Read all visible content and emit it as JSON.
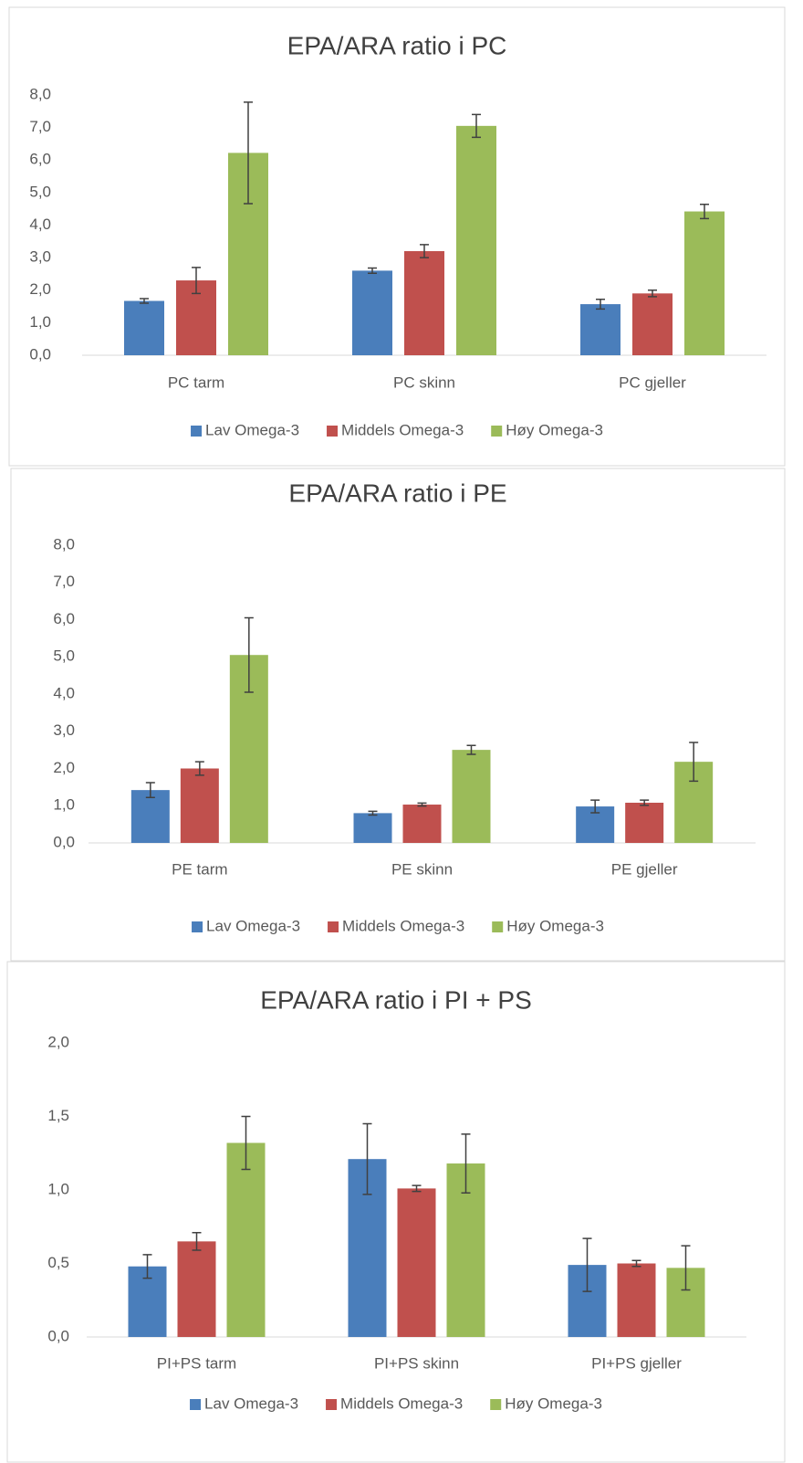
{
  "chart_data": [
    {
      "type": "bar",
      "title": "EPA/ARA ratio i PC",
      "categories": [
        "PC tarm",
        "PC skinn",
        "PC gjeller"
      ],
      "series": [
        {
          "name": "Lav Omega-3",
          "color": "#4a7ebb",
          "values": [
            1.67,
            2.6,
            1.57
          ],
          "errors": [
            0.07,
            0.08,
            0.15
          ]
        },
        {
          "name": "Middels Omega-3",
          "color": "#c0504d",
          "values": [
            2.3,
            3.2,
            1.9
          ],
          "errors": [
            0.4,
            0.2,
            0.1
          ]
        },
        {
          "name": "Høy Omega-3",
          "color": "#9bbb59",
          "values": [
            6.22,
            7.05,
            4.42
          ],
          "errors": [
            1.56,
            0.35,
            0.22
          ]
        }
      ],
      "ylim": [
        0,
        8
      ],
      "yticks": [
        {
          "value": 0,
          "label": "0,0"
        },
        {
          "value": 1,
          "label": "1,0"
        },
        {
          "value": 2,
          "label": "2,0"
        },
        {
          "value": 3,
          "label": "3,0"
        },
        {
          "value": 4,
          "label": "4,0"
        },
        {
          "value": 5,
          "label": "5,0"
        },
        {
          "value": 6,
          "label": "6,0"
        },
        {
          "value": 7,
          "label": "7,0"
        },
        {
          "value": 8,
          "label": "8,0"
        }
      ],
      "grid": false,
      "legend": "bottom"
    },
    {
      "type": "bar",
      "title": "EPA/ARA ratio i PE",
      "categories": [
        "PE tarm",
        "PE skinn",
        "PE gjeller"
      ],
      "series": [
        {
          "name": "Lav Omega-3",
          "color": "#4a7ebb",
          "values": [
            1.42,
            0.8,
            0.98
          ],
          "errors": [
            0.2,
            0.05,
            0.17
          ]
        },
        {
          "name": "Middels Omega-3",
          "color": "#c0504d",
          "values": [
            2.0,
            1.03,
            1.08
          ],
          "errors": [
            0.18,
            0.04,
            0.07
          ]
        },
        {
          "name": "Høy Omega-3",
          "color": "#9bbb59",
          "values": [
            5.05,
            2.5,
            2.18
          ],
          "errors": [
            1.0,
            0.12,
            0.52
          ]
        }
      ],
      "ylim": [
        0,
        8
      ],
      "yticks": [
        {
          "value": 0,
          "label": "0,0"
        },
        {
          "value": 1,
          "label": "1,0"
        },
        {
          "value": 2,
          "label": "2,0"
        },
        {
          "value": 3,
          "label": "3,0"
        },
        {
          "value": 4,
          "label": "4,0"
        },
        {
          "value": 5,
          "label": "5,0"
        },
        {
          "value": 6,
          "label": "6,0"
        },
        {
          "value": 7,
          "label": "7,0"
        },
        {
          "value": 8,
          "label": "8,0"
        }
      ],
      "grid": false,
      "legend": "bottom"
    },
    {
      "type": "bar",
      "title": "EPA/ARA ratio i PI + PS",
      "categories": [
        "PI+PS tarm",
        "PI+PS skinn",
        "PI+PS gjeller"
      ],
      "series": [
        {
          "name": "Lav Omega-3",
          "color": "#4a7ebb",
          "values": [
            0.48,
            1.21,
            0.49
          ],
          "errors": [
            0.08,
            0.24,
            0.18
          ]
        },
        {
          "name": "Middels Omega-3",
          "color": "#c0504d",
          "values": [
            0.65,
            1.01,
            0.5
          ],
          "errors": [
            0.06,
            0.02,
            0.02
          ]
        },
        {
          "name": "Høy Omega-3",
          "color": "#9bbb59",
          "values": [
            1.32,
            1.18,
            0.47
          ],
          "errors": [
            0.18,
            0.2,
            0.15
          ]
        }
      ],
      "ylim": [
        0,
        2
      ],
      "yticks": [
        {
          "value": 0,
          "label": "0,0"
        },
        {
          "value": 0.5,
          "label": "0,5"
        },
        {
          "value": 1,
          "label": "1,0"
        },
        {
          "value": 1.5,
          "label": "1,5"
        },
        {
          "value": 2,
          "label": "2,0"
        }
      ],
      "grid": false,
      "legend": "bottom"
    }
  ]
}
